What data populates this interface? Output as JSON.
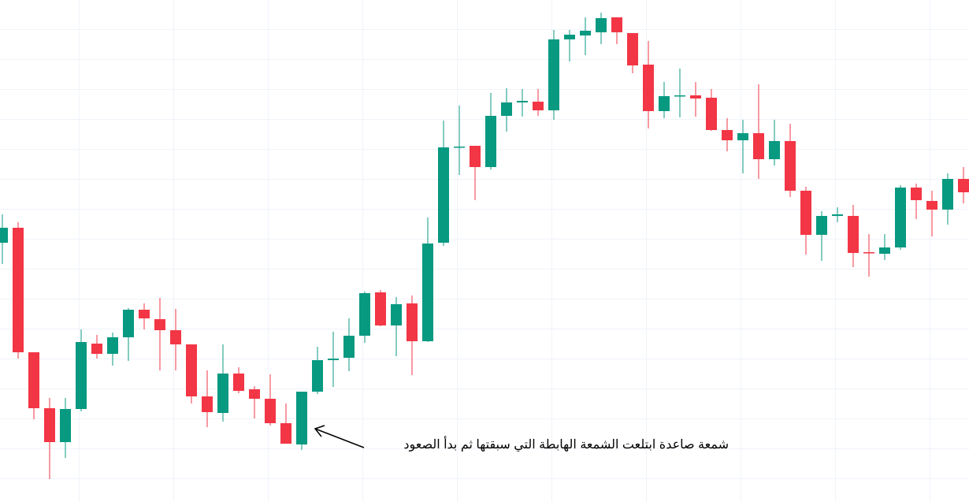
{
  "chart_data": {
    "type": "candlestick",
    "annotation": "شمعة صاعدة ابتلعت الشمعة الهابطة التي سبقتها ثم بدأ الصعود",
    "up_color": "#089981",
    "down_color": "#f23645",
    "ylim": [
      0,
      637
    ],
    "open": [
      329,
      348,
      190,
      119,
      76,
      118,
      201,
      188,
      209,
      244,
      232,
      218,
      200,
      134,
      113,
      163,
      143,
      131,
      100,
      73,
      140,
      180,
      183,
      211,
      266,
      224,
      252,
      204,
      329,
      450,
      452,
      425,
      490,
      507,
      508,
      497,
      587,
      592,
      596,
      615,
      595,
      555,
      496,
      515,
      516,
      513,
      472,
      459,
      468,
      435,
      458,
      395,
      339,
      363,
      363,
      317,
      315,
      323,
      399,
      382,
      371,
      410
    ],
    "high": [
      365,
      355,
      190,
      132,
      132,
      219,
      212,
      215,
      246,
      252,
      259,
      245,
      200,
      167,
      200,
      171,
      147,
      162,
      125,
      140,
      197,
      216,
      233,
      267,
      269,
      260,
      262,
      361,
      484,
      503,
      452,
      519,
      525,
      524,
      524,
      599,
      599,
      615,
      621,
      615,
      595,
      585,
      533,
      550,
      533,
      524,
      487,
      485,
      530,
      485,
      480,
      400,
      369,
      374,
      377,
      340,
      340,
      402,
      404,
      395,
      417,
      425
    ],
    "low": [
      302,
      182,
      105,
      29,
      56,
      115,
      182,
      173,
      179,
      219,
      167,
      167,
      125,
      95,
      102,
      138,
      106,
      97,
      74,
      66,
      137,
      146,
      166,
      202,
      223,
      185,
      161,
      203,
      325,
      415,
      383,
      422,
      470,
      489,
      490,
      485,
      559,
      567,
      581,
      581,
      544,
      474,
      487,
      488,
      489,
      471,
      445,
      417,
      410,
      427,
      387,
      314,
      306,
      355,
      298,
      286,
      307,
      320,
      359,
      337,
      352,
      379
    ],
    "close": [
      348,
      190,
      119,
      76,
      118,
      203,
      188,
      209,
      244,
      233,
      218,
      200,
      134,
      114,
      163,
      141,
      131,
      100,
      74,
      140,
      180,
      182,
      211,
      265,
      224,
      251,
      204,
      328,
      450,
      451,
      425,
      490,
      507,
      509,
      497,
      587,
      593,
      598,
      614,
      596,
      554,
      496,
      515,
      516,
      512,
      472,
      459,
      468,
      435,
      458,
      395,
      339,
      363,
      365,
      316,
      316,
      323,
      399,
      383,
      371,
      410,
      393
    ]
  }
}
